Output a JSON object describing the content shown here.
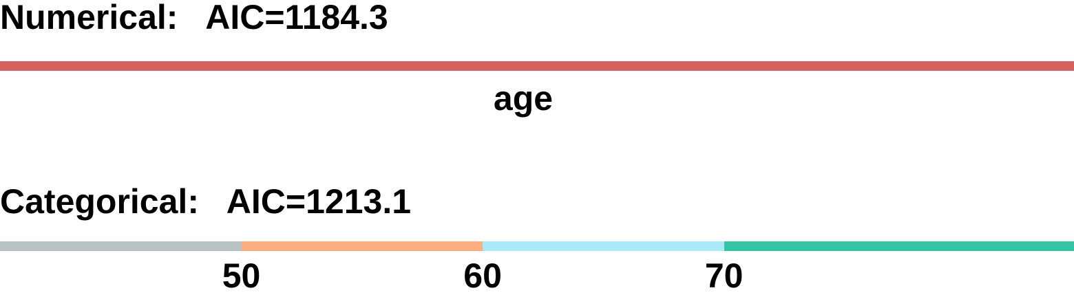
{
  "numerical": {
    "heading": "Numerical:   AIC=1184.3",
    "bar_color": "#d4605f",
    "label": "age"
  },
  "categorical": {
    "heading": "Categorical:   AIC=1213.1",
    "segments": [
      {
        "from": 40,
        "to": 50,
        "color": "#b8c3c5"
      },
      {
        "from": 50,
        "to": 60,
        "color": "#fbaf80"
      },
      {
        "from": 60,
        "to": 70,
        "color": "#aaeaf8"
      },
      {
        "from": 70,
        "to": 84.5,
        "color": "#35c3a6"
      }
    ],
    "ticks": [
      "50",
      "60",
      "70"
    ]
  }
}
